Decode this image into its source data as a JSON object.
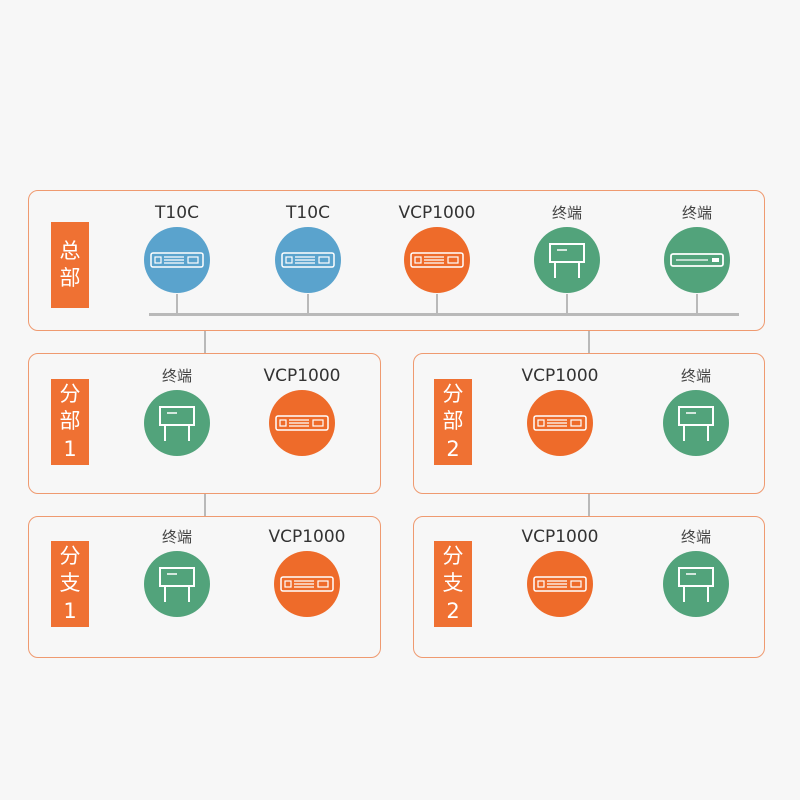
{
  "colors": {
    "blue": "#5aa3cd",
    "orange": "#ee6b2a",
    "green": "#52a37b",
    "tag": "#ef7133",
    "border": "#ef9a70"
  },
  "hq": {
    "tag": [
      "总",
      "部"
    ],
    "devices": [
      {
        "label": "T10C",
        "icon": "server-icon",
        "color": "blue"
      },
      {
        "label": "T10C",
        "icon": "server-icon",
        "color": "blue"
      },
      {
        "label": "VCP1000",
        "icon": "server-icon",
        "color": "orange"
      },
      {
        "label": "终端",
        "icon": "terminal-stand-icon",
        "color": "green"
      },
      {
        "label": "终端",
        "icon": "terminal-box-icon",
        "color": "green"
      }
    ]
  },
  "branch1": {
    "tag": [
      "分",
      "部",
      "1"
    ],
    "devices": [
      {
        "label": "终端",
        "icon": "terminal-stand-icon",
        "color": "green"
      },
      {
        "label": "VCP1000",
        "icon": "server-icon",
        "color": "orange"
      }
    ]
  },
  "branch2": {
    "tag": [
      "分",
      "部",
      "2"
    ],
    "devices": [
      {
        "label": "VCP1000",
        "icon": "server-icon",
        "color": "orange"
      },
      {
        "label": "终端",
        "icon": "terminal-stand-icon",
        "color": "green"
      }
    ]
  },
  "sub1": {
    "tag": [
      "分",
      "支",
      "1"
    ],
    "devices": [
      {
        "label": "终端",
        "icon": "terminal-stand-icon",
        "color": "green"
      },
      {
        "label": "VCP1000",
        "icon": "server-icon",
        "color": "orange"
      }
    ]
  },
  "sub2": {
    "tag": [
      "分",
      "支",
      "2"
    ],
    "devices": [
      {
        "label": "VCP1000",
        "icon": "server-icon",
        "color": "orange"
      },
      {
        "label": "终端",
        "icon": "terminal-stand-icon",
        "color": "green"
      }
    ]
  }
}
